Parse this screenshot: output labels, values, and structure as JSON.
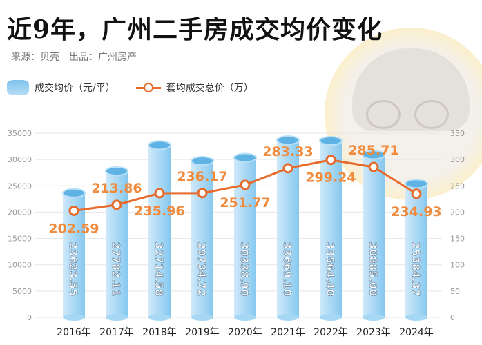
{
  "header": {
    "title": "近9年，广州二手房成交均价变化",
    "source": "来源：贝壳　出品：广州房产"
  },
  "legend": {
    "bar": "成交均价（元/平）",
    "line": "套均成交总价（万）"
  },
  "colors": {
    "bar": "#8fcdf1",
    "line": "#e66b2d",
    "label": "#f08a3c"
  },
  "chart_data": {
    "type": "bar+line",
    "categories": [
      "2016年",
      "2017年",
      "2018年",
      "2019年",
      "2020年",
      "2021年",
      "2022年",
      "2023年",
      "2024年"
    ],
    "series": [
      {
        "name": "成交均价（元/平）",
        "type": "bar",
        "axis": "left",
        "values": [
          23623.55,
          27782.11,
          32714.58,
          29734.72,
          30338.9,
          33669.1,
          33564.4,
          30885.0,
          25384.37
        ],
        "labels": [
          "23623.55",
          "27782.11",
          "32714.58",
          "29734.72",
          "30338.90",
          "33669.10",
          "33564.40",
          "30885.00",
          "25384.37"
        ]
      },
      {
        "name": "套均成交总价（万）",
        "type": "line",
        "axis": "right",
        "values": [
          202.59,
          213.86,
          235.96,
          236.17,
          251.77,
          283.33,
          299.24,
          285.71,
          234.93
        ],
        "labels": [
          "202.59",
          "213.86",
          "235.96",
          "236.17",
          "251.77",
          "283.33",
          "299.24",
          "285.71",
          "234.93"
        ]
      }
    ],
    "left_axis": {
      "ylim": [
        0,
        35000
      ],
      "ticks": [
        "0",
        "5000",
        "10000",
        "15000",
        "20000",
        "25000",
        "30000",
        "35000"
      ]
    },
    "right_axis": {
      "ylim": [
        0,
        350
      ],
      "ticks": [
        "0",
        "50",
        "100",
        "150",
        "200",
        "250",
        "300",
        "350"
      ]
    },
    "grid": true,
    "legend_position": "top-left"
  }
}
